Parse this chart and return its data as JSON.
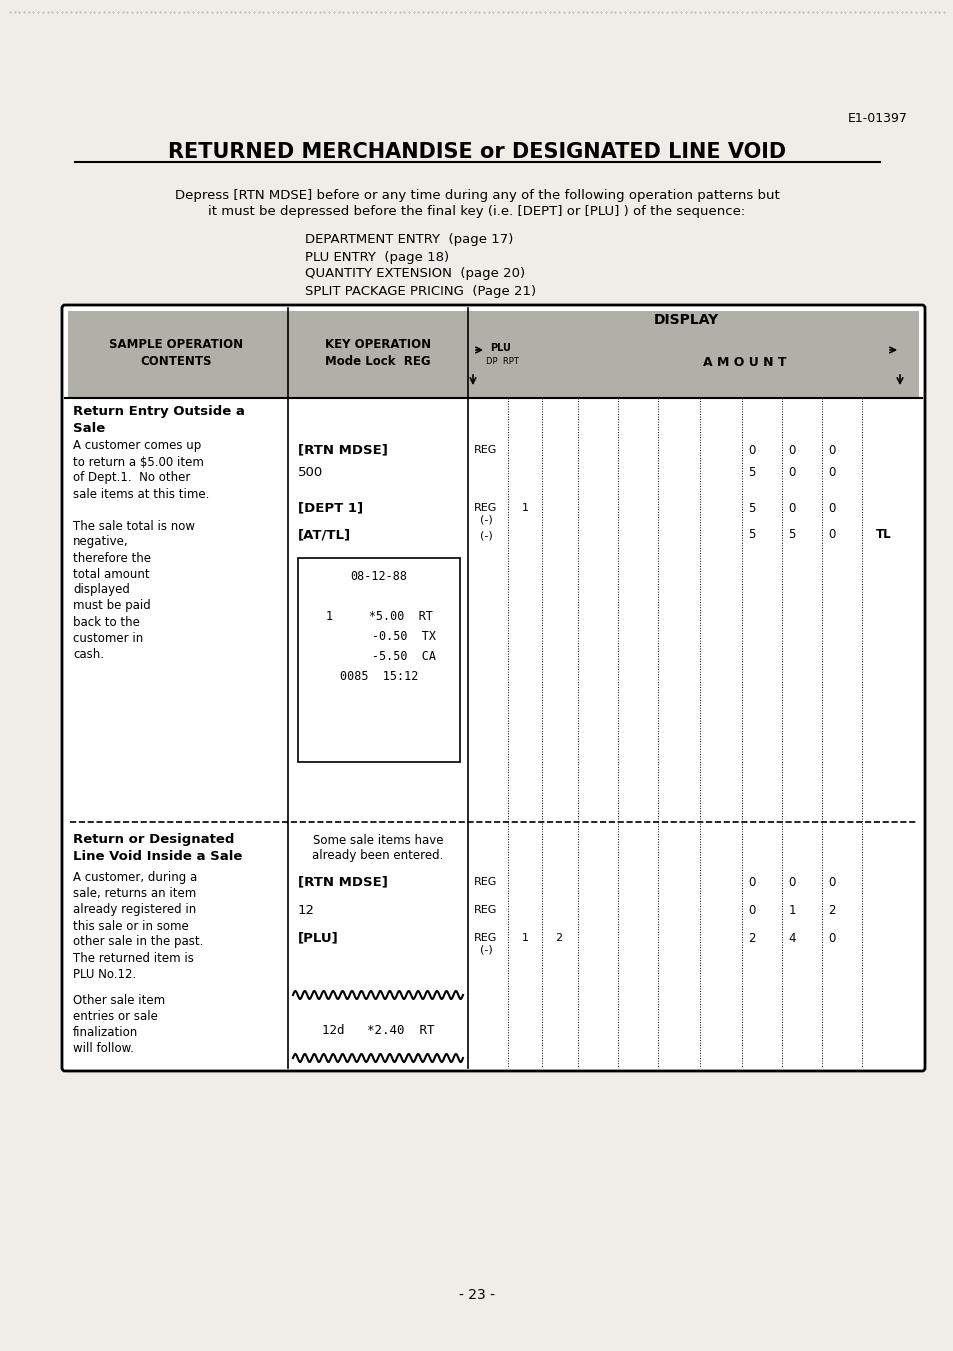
{
  "page_id": "E1-01397",
  "title": "RETURNED MERCHANDISE or DESIGNATED LINE VOID",
  "intro_line1": "Depress [RTN MDSE] before or any time during any of the following operation patterns but",
  "intro_line2": "it must be depressed before the final key (i.e. [DEPT] or [PLU] ) of the sequence:",
  "list_items": [
    "DEPARTMENT ENTRY  (page 17)",
    "PLU ENTRY  (page 18)",
    "QUANTITY EXTENSION  (page 20)",
    "SPLIT PACKAGE PRICING  (Page 21)"
  ],
  "table_header_col1": "SAMPLE OPERATION\nCONTENTS",
  "table_header_col2": "KEY OPERATION\nMode Lock  REG",
  "table_header_display": "DISPLAY",
  "table_header_plu": "PLU",
  "table_header_dprpt": "DP  RPT",
  "table_header_amount": "A M O U N T",
  "section1_title1": "Return Entry Outside a",
  "section1_title2": "Sale",
  "section1_desc": [
    "A customer comes up",
    "to return a $5.00 item",
    "of Dept.1.  No other",
    "sale items at this time.",
    "",
    "The sale total is now",
    "negative,",
    "therefore the",
    "total amount",
    "displayed",
    "must be paid",
    "back to the",
    "customer in",
    "cash."
  ],
  "section1_keys": [
    "[RTN MDSE]",
    "500",
    "[DEPT 1]",
    "[AT/TL]"
  ],
  "section1_display_col1": [
    "REG",
    "",
    "REG",
    "(-)"
  ],
  "section1_display_col1b": [
    "",
    "",
    "(-)",
    ""
  ],
  "section1_display_col2": [
    "",
    "",
    "1",
    ""
  ],
  "section1_display_amounts": [
    [
      "0",
      "0",
      "0"
    ],
    [
      "5",
      "0",
      "0"
    ],
    [
      "5",
      "0",
      "0"
    ],
    [
      "5",
      "5",
      "0"
    ]
  ],
  "section1_tl": [
    "",
    "",
    "",
    "TL"
  ],
  "section1_receipt": [
    "08-12-88",
    "",
    "1     *5.00  RT",
    "       -0.50  TX",
    "       -5.50  CA",
    "0085  15:12"
  ],
  "section2_title1": "Return or Designated",
  "section2_title2": "Line Void Inside a Sale",
  "section2_pretext1": "Some sale items have",
  "section2_pretext2": "already been entered.",
  "section2_desc": [
    "A customer, during a",
    "sale, returns an item",
    "already registered in",
    "this sale or in some",
    "other sale in the past.",
    "The returned item is",
    "PLU No.12."
  ],
  "section2_keys": [
    "[RTN MDSE]",
    "12",
    "[PLU]"
  ],
  "section2_display_col1": [
    "REG",
    "REG",
    "REG"
  ],
  "section2_display_col1b": [
    "",
    "",
    "(-)"
  ],
  "section2_display_col2": [
    "",
    "",
    "1"
  ],
  "section2_display_col3": [
    "",
    "",
    "2"
  ],
  "section2_display_amounts": [
    [
      "0",
      "0",
      "0"
    ],
    [
      "0",
      "1",
      "2"
    ],
    [
      "2",
      "4",
      "0"
    ]
  ],
  "section2_footer": [
    "Other sale item",
    "entries or sale",
    "finalization",
    "will follow."
  ],
  "section2_receipt": "12d   *2.40  RT",
  "page_number": "- 23 -",
  "bg_color": "#f0ede8",
  "table_header_bg": "#b0afa8",
  "white": "#ffffff",
  "black": "#000000"
}
